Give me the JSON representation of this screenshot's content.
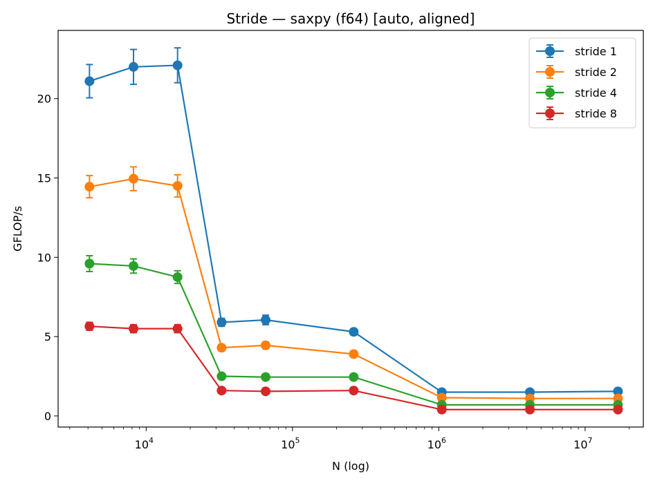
{
  "chart_data": {
    "type": "line",
    "title": "Stride — saxpy (f64) [auto, aligned]",
    "xlabel": "N (log)",
    "ylabel": "GFLOP/s",
    "xscale": "log",
    "xlim": [
      2500,
      25000000
    ],
    "ylim": [
      -0.7,
      24.3
    ],
    "x": [
      4096,
      8192,
      16384,
      32768,
      65536,
      262144,
      1048576,
      4194304,
      16777216
    ],
    "x_ticks": [
      {
        "value": 10000,
        "label": "10",
        "exp": "4"
      },
      {
        "value": 100000,
        "label": "10",
        "exp": "5"
      },
      {
        "value": 1000000,
        "label": "10",
        "exp": "6"
      },
      {
        "value": 10000000,
        "label": "10",
        "exp": "7"
      }
    ],
    "y_ticks": [
      {
        "value": 0,
        "label": "0"
      },
      {
        "value": 5,
        "label": "5"
      },
      {
        "value": 10,
        "label": "10"
      },
      {
        "value": 15,
        "label": "15"
      },
      {
        "value": 20,
        "label": "20"
      }
    ],
    "legend_position": "top-right",
    "grid": false,
    "series": [
      {
        "name": "stride 1",
        "color": "#1f77b4",
        "values": [
          21.1,
          22.0,
          22.1,
          5.9,
          6.05,
          5.3,
          1.5,
          1.5,
          1.55
        ],
        "errors": [
          1.05,
          1.1,
          1.1,
          0.25,
          0.3,
          0.2,
          0.05,
          0.05,
          0.05
        ]
      },
      {
        "name": "stride 2",
        "color": "#ff7f0e",
        "values": [
          14.45,
          14.95,
          14.5,
          4.3,
          4.45,
          3.9,
          1.15,
          1.1,
          1.1
        ],
        "errors": [
          0.7,
          0.75,
          0.7,
          0.2,
          0.2,
          0.2,
          0.05,
          0.05,
          0.05
        ]
      },
      {
        "name": "stride 4",
        "color": "#2ca02c",
        "values": [
          9.6,
          9.45,
          8.75,
          2.5,
          2.45,
          2.45,
          0.7,
          0.7,
          0.7
        ],
        "errors": [
          0.5,
          0.45,
          0.4,
          0.1,
          0.1,
          0.1,
          0.03,
          0.03,
          0.03
        ]
      },
      {
        "name": "stride 8",
        "color": "#d62728",
        "values": [
          5.65,
          5.5,
          5.5,
          1.6,
          1.55,
          1.6,
          0.4,
          0.4,
          0.4
        ],
        "errors": [
          0.25,
          0.25,
          0.25,
          0.05,
          0.05,
          0.05,
          0.02,
          0.02,
          0.02
        ]
      }
    ]
  }
}
